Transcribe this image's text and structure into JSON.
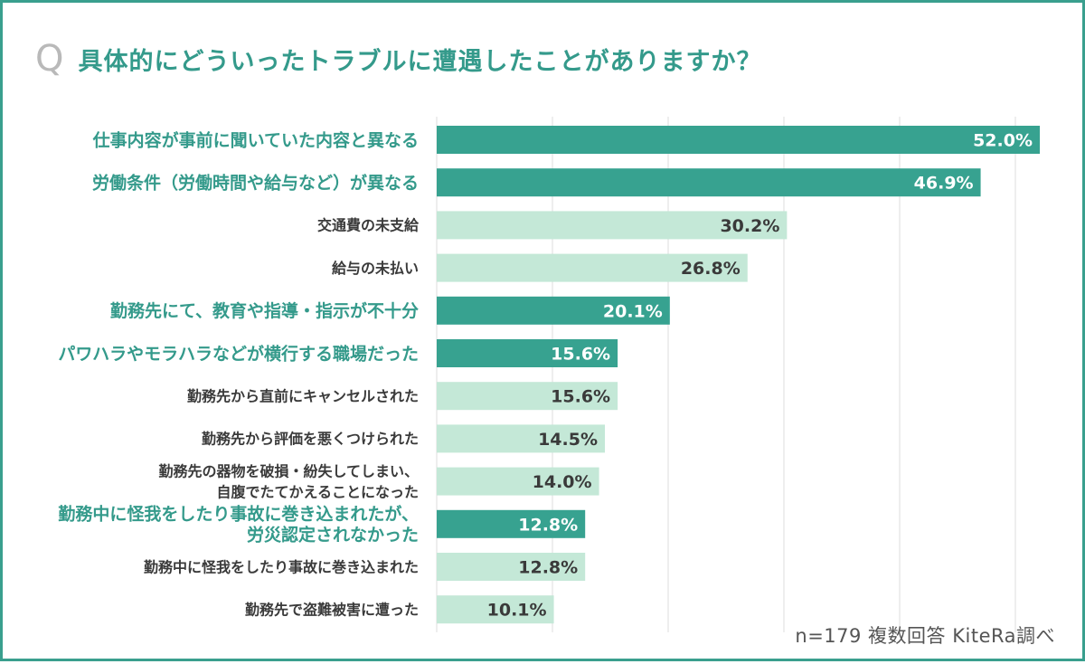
{
  "title": {
    "mark": "Q",
    "text": "具体的にどういったトラブルに遭遇したことがありますか？"
  },
  "footnote": "n=179 複数回答 KiteRa調べ",
  "colors": {
    "highlight_bar": "#37a290",
    "normal_bar": "#c4e8d7",
    "highlight_text": "#349a8b",
    "normal_text": "#3a3a3a",
    "value_on_highlight": "#ffffff",
    "value_on_normal": "#3a3a3a",
    "grid": "#dcdcdc",
    "border": "#3a9f8e"
  },
  "chart_data": {
    "type": "bar",
    "orientation": "horizontal",
    "xlim": [
      0,
      52.0
    ],
    "grid": true,
    "categories": [
      {
        "lines": [
          "仕事内容が事前に聞いていた内容と異なる"
        ],
        "value": 52.0,
        "label": "52.0%",
        "highlight": true
      },
      {
        "lines": [
          "労働条件（労働時間や給与など）が異なる"
        ],
        "value": 46.9,
        "label": "46.9%",
        "highlight": true
      },
      {
        "lines": [
          "交通費の未支給"
        ],
        "value": 30.2,
        "label": "30.2%",
        "highlight": false
      },
      {
        "lines": [
          "給与の未払い"
        ],
        "value": 26.8,
        "label": "26.8%",
        "highlight": false
      },
      {
        "lines": [
          "勤務先にて、教育や指導・指示が不十分"
        ],
        "value": 20.1,
        "label": "20.1%",
        "highlight": true
      },
      {
        "lines": [
          "パワハラやモラハラなどが横行する職場だった"
        ],
        "value": 15.6,
        "label": "15.6%",
        "highlight": true
      },
      {
        "lines": [
          "勤務先から直前にキャンセルされた"
        ],
        "value": 15.6,
        "label": "15.6%",
        "highlight": false
      },
      {
        "lines": [
          "勤務先から評価を悪くつけられた"
        ],
        "value": 14.5,
        "label": "14.5%",
        "highlight": false
      },
      {
        "lines": [
          "勤務先の器物を破損・紛失してしまい、",
          "自腹でたてかえることになった"
        ],
        "value": 14.0,
        "label": "14.0%",
        "highlight": false
      },
      {
        "lines": [
          "勤務中に怪我をしたり事故に巻き込まれたが、",
          "労災認定されなかった"
        ],
        "value": 12.8,
        "label": "12.8%",
        "highlight": true
      },
      {
        "lines": [
          "勤務中に怪我をしたり事故に巻き込まれた"
        ],
        "value": 12.8,
        "label": "12.8%",
        "highlight": false
      },
      {
        "lines": [
          "勤務先で盗難被害に遭った"
        ],
        "value": 10.1,
        "label": "10.1%",
        "highlight": false
      }
    ]
  }
}
